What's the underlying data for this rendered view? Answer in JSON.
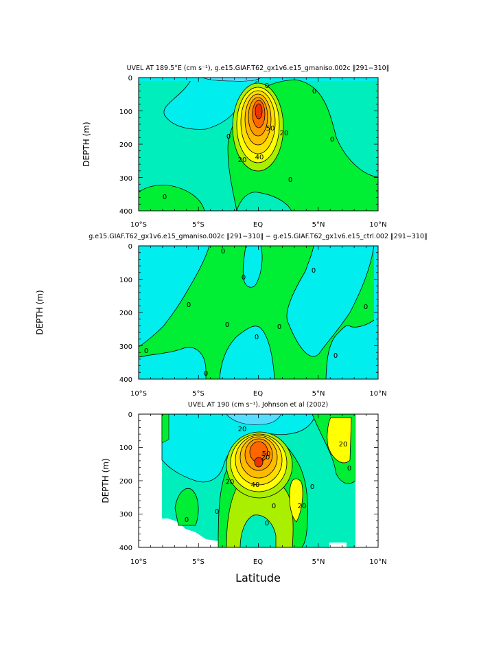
{
  "chart_data": [
    {
      "type": "contour",
      "title": "UVEL AT 189.5°E (cm s⁻¹), g.e15.GIAF.T62_gx1v6.e15_gmaniso.002c ‖291−310‖",
      "xlabel": "",
      "ylabel": "DEPTH (m)",
      "x_tick_labels": [
        "10°S",
        "5°S",
        "EQ",
        "5°N",
        "10°N"
      ],
      "y_tick_labels": [
        "0",
        "100",
        "200",
        "300",
        "400"
      ],
      "xlim": [
        -10,
        10
      ],
      "ylim": [
        400,
        0
      ],
      "contour_interval": 10,
      "core": {
        "lat": 0.0,
        "depth": 160,
        "max": 60
      },
      "contour_labels": [
        "0",
        "0",
        "0",
        "0",
        "0",
        "0",
        "20",
        "20",
        "40",
        "50"
      ]
    },
    {
      "type": "contour",
      "title": "g.e15.GIAF.T62_gx1v6.e15_gmaniso.002c ‖291−310‖ − g.e15.GIAF.T62_gx1v6.e15_ctrl.002 ‖291−310‖",
      "xlabel": "",
      "ylabel": "DEPTH (m)",
      "x_tick_labels": [
        "10°S",
        "5°S",
        "EQ",
        "5°N",
        "10°N"
      ],
      "y_tick_labels": [
        "0",
        "100",
        "200",
        "300",
        "400"
      ],
      "xlim": [
        -10,
        10
      ],
      "ylim": [
        400,
        0
      ],
      "contour_labels": [
        "0",
        "0",
        "0",
        "0",
        "0",
        "0",
        "0",
        "0",
        "0",
        "0",
        "0"
      ]
    },
    {
      "type": "contour",
      "title": "UVEL AT 190 (cm s⁻¹), Johnson et al (2002)",
      "xlabel": "Latitude",
      "ylabel": "DEPTH (m)",
      "x_tick_labels": [
        "10°S",
        "5°S",
        "EQ",
        "5°N",
        "10°N"
      ],
      "y_tick_labels": [
        "0",
        "100",
        "200",
        "300",
        "400"
      ],
      "xlim": [
        -10,
        10
      ],
      "ylim": [
        400,
        0
      ],
      "contour_interval": 10,
      "core": {
        "lat": 0.0,
        "depth": 155,
        "max": 60
      },
      "contour_labels": [
        "20",
        "20",
        "20",
        "20",
        "40",
        "50",
        "20",
        "0",
        "0",
        "0",
        "0",
        "0",
        "0"
      ]
    }
  ],
  "colors": {
    "cyan_light": "#55ddff",
    "cyan": "#00eeee",
    "teal": "#00eebb",
    "green": "#00ee33",
    "yellow_green": "#aaee00",
    "yellow": "#ffff00",
    "yellow_orange": "#ffdd00",
    "orange_light": "#ffbb00",
    "orange": "#ff9900",
    "red_orange": "#ff6600",
    "red": "#ee3300"
  }
}
